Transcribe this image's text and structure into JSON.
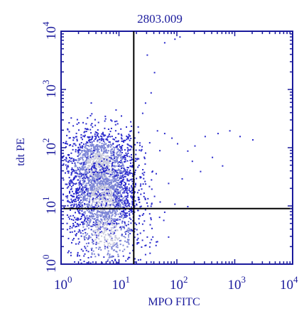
{
  "chart_data": {
    "type": "scatter",
    "title": "2803.009",
    "xlabel": "MPO FITC",
    "ylabel": "tdt PE",
    "xscale": "log",
    "yscale": "log",
    "xlim": [
      1,
      10000
    ],
    "ylim": [
      1,
      10000
    ],
    "x_tick_labels": [
      {
        "base": "10",
        "exp": "0",
        "value": 1
      },
      {
        "base": "10",
        "exp": "1",
        "value": 10
      },
      {
        "base": "10",
        "exp": "2",
        "value": 100
      },
      {
        "base": "10",
        "exp": "3",
        "value": 1000
      },
      {
        "base": "10",
        "exp": "4",
        "value": 10000
      }
    ],
    "y_tick_labels": [
      {
        "base": "10",
        "exp": "0",
        "value": 1
      },
      {
        "base": "10",
        "exp": "1",
        "value": 10
      },
      {
        "base": "10",
        "exp": "2",
        "value": 100
      },
      {
        "base": "10",
        "exp": "3",
        "value": 1000
      },
      {
        "base": "10",
        "exp": "4",
        "value": 10000
      }
    ],
    "quadrant_gates": {
      "x": 18,
      "y": 9
    },
    "grid": false,
    "legend": "none",
    "colors": {
      "axis": "#1a1a9c",
      "gate": "#000000",
      "density_low": "#2a2acc",
      "density_mid": "#7d86d6",
      "density_high": "#c7c9dc"
    },
    "clusters": [
      {
        "center_x": 4.5,
        "center_y": 50,
        "spread_x": 0.55,
        "spread_y": 0.55,
        "count": 1500
      },
      {
        "center_x": 5.0,
        "center_y": 14,
        "spread_x": 0.5,
        "spread_y": 0.55,
        "count": 1100
      },
      {
        "center_x": 6.0,
        "center_y": 3.5,
        "spread_x": 0.55,
        "spread_y": 0.6,
        "count": 500
      }
    ],
    "sparse_points": [
      [
        30,
        4000
      ],
      [
        60,
        6500
      ],
      [
        90,
        7500
      ],
      [
        110,
        8200
      ],
      [
        40,
        2000
      ],
      [
        35,
        900
      ],
      [
        28,
        600
      ],
      [
        25,
        400
      ],
      [
        45,
        200
      ],
      [
        60,
        180
      ],
      [
        80,
        150
      ],
      [
        100,
        120
      ],
      [
        150,
        90
      ],
      [
        200,
        110
      ],
      [
        300,
        160
      ],
      [
        500,
        180
      ],
      [
        800,
        200
      ],
      [
        1200,
        160
      ],
      [
        2000,
        140
      ],
      [
        400,
        70
      ],
      [
        600,
        50
      ],
      [
        250,
        40
      ],
      [
        180,
        60
      ],
      [
        120,
        30
      ],
      [
        70,
        25
      ],
      [
        40,
        15
      ],
      [
        50,
        12
      ],
      [
        90,
        11
      ],
      [
        150,
        10
      ],
      [
        60,
        8
      ],
      [
        35,
        6
      ],
      [
        25,
        5
      ],
      [
        30,
        3
      ],
      [
        45,
        2.5
      ],
      [
        70,
        3
      ],
      [
        28,
        1.5
      ],
      [
        22,
        7
      ],
      [
        24,
        20
      ],
      [
        26,
        35
      ]
    ]
  }
}
